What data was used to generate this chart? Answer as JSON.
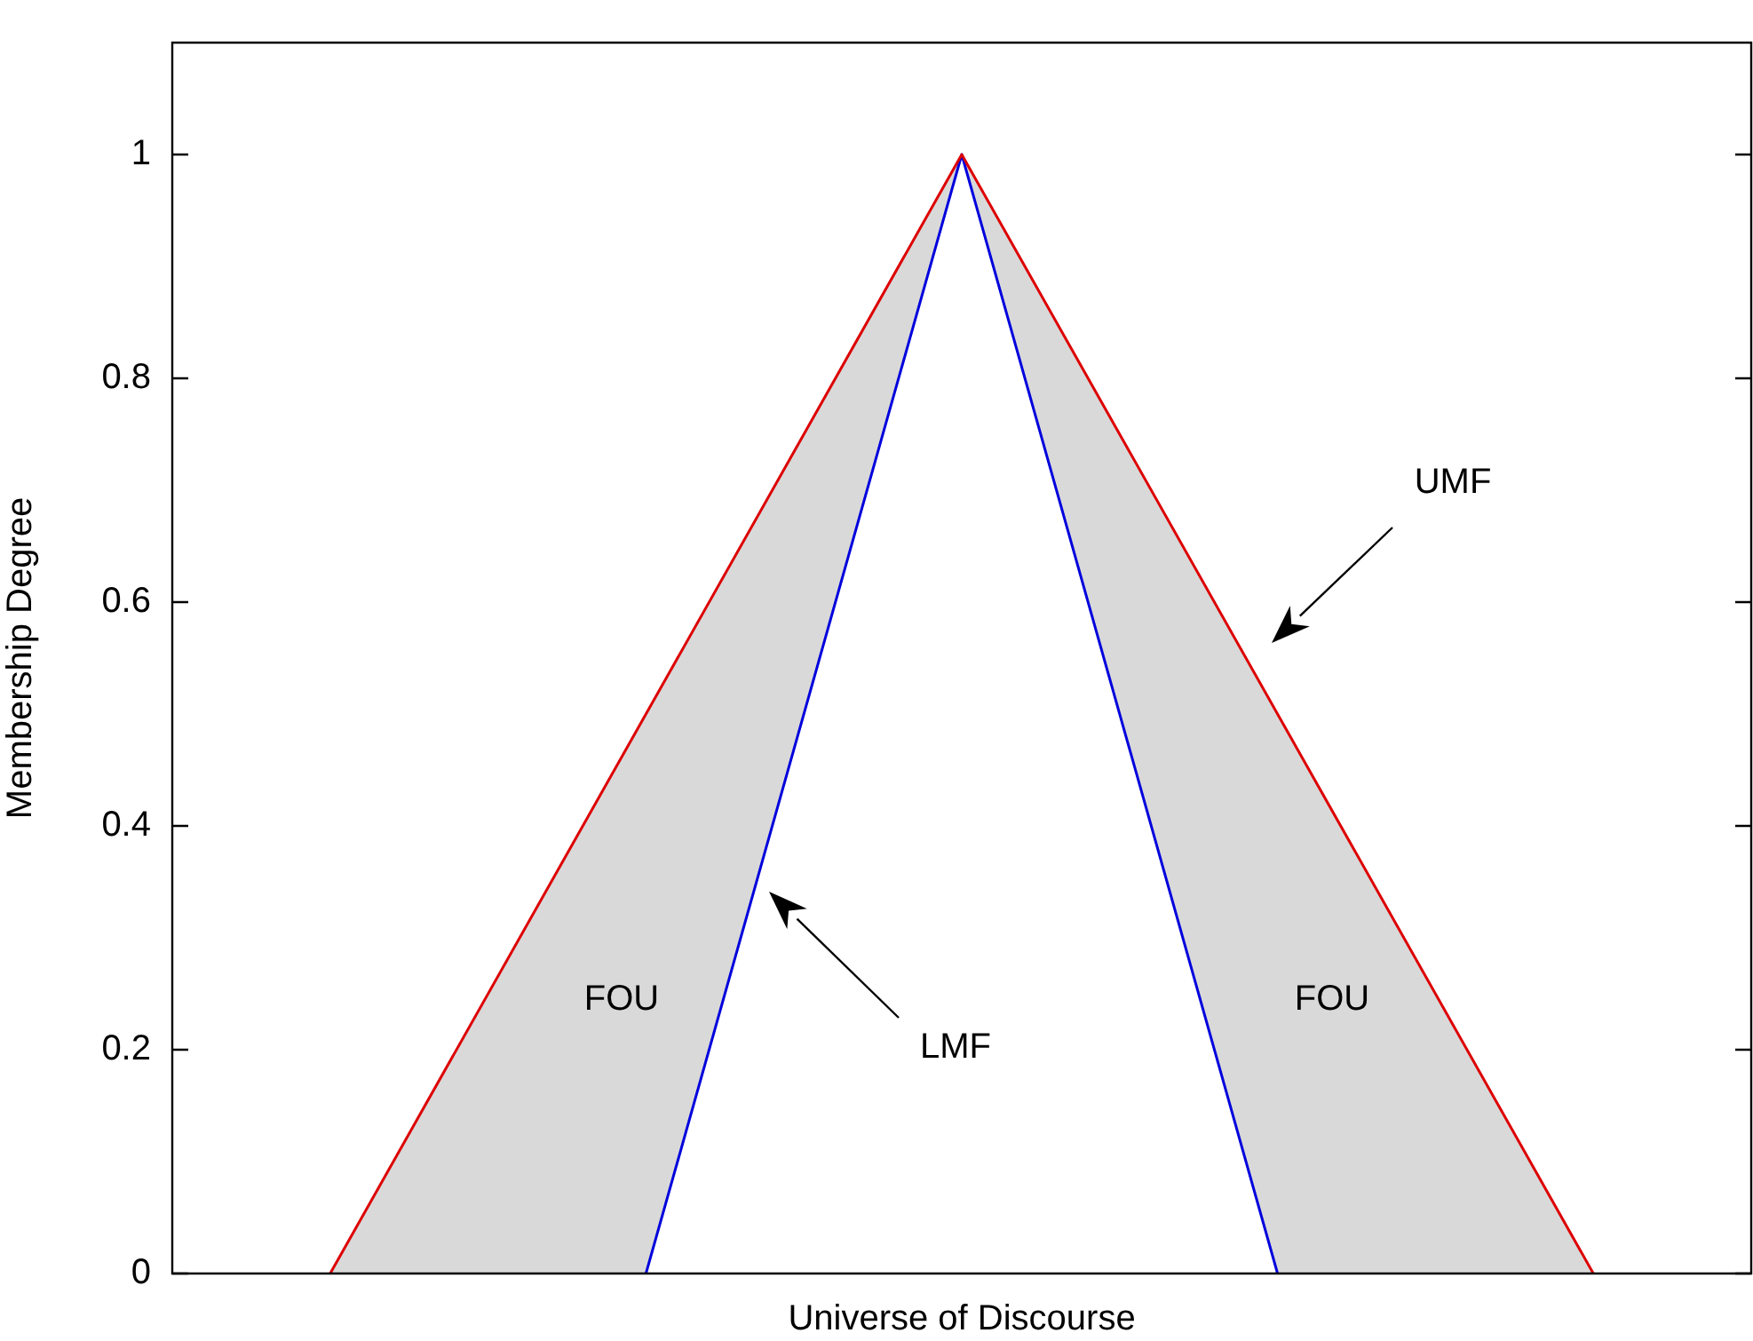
{
  "chart_data": {
    "type": "line",
    "xlabel": "Universe of Discourse",
    "ylabel": "Membership Degree",
    "categories": [
      null,
      null,
      null,
      null,
      null
    ],
    "series": [
      {
        "color": "#dd0000",
        "values": [
          0,
          0.5,
          1,
          0.5,
          0
        ]
      },
      {
        "color": "#0000dd",
        "values": [
          null,
          0,
          1,
          0,
          null
        ]
      }
    ],
    "ylim": [
      0,
      1.1
    ],
    "yticks": [
      0,
      0.2,
      0.4,
      0.6,
      0.8,
      1
    ],
    "tick_labels": "y",
    "grid": false,
    "legend": false,
    "annotations": [
      "FOU",
      "FOU",
      "LMF",
      "UMF"
    ]
  }
}
